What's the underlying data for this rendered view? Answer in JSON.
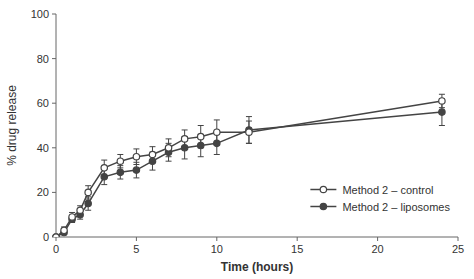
{
  "chart_data": {
    "type": "line",
    "x": [
      0,
      0.5,
      1,
      1.5,
      2,
      3,
      4,
      5,
      6,
      7,
      8,
      9,
      10,
      12,
      24
    ],
    "series": [
      {
        "name": "Method 2 – control",
        "color": "#444444",
        "marker": "open-circle",
        "line_style": "solid",
        "values": [
          0,
          3,
          9,
          12,
          20,
          31,
          34,
          36,
          37,
          40,
          44,
          45,
          47,
          47,
          61
        ],
        "errors": [
          0,
          1.5,
          2,
          2,
          3,
          3.5,
          3,
          3.5,
          3.5,
          4,
          4,
          5,
          5.5,
          5,
          3
        ]
      },
      {
        "name": "Method 2 – liposomes",
        "color": "#444444",
        "marker": "circle",
        "line_style": "solid",
        "values": [
          0,
          2,
          8,
          10,
          15,
          27,
          29,
          30,
          34,
          38,
          40,
          41,
          42,
          48,
          56
        ],
        "errors": [
          0,
          1,
          1.5,
          2,
          3,
          3.5,
          3,
          3.5,
          4,
          4,
          5,
          5,
          5,
          6,
          6
        ]
      }
    ],
    "xlabel": "Time (hours)",
    "ylabel": "% drug release",
    "xlim": [
      0,
      25
    ],
    "ylim": [
      0,
      100
    ],
    "xticks": [
      0,
      5,
      10,
      15,
      20,
      25
    ],
    "yticks": [
      0,
      20,
      40,
      60,
      80,
      100
    ],
    "grid": false,
    "legend": "lower right"
  }
}
